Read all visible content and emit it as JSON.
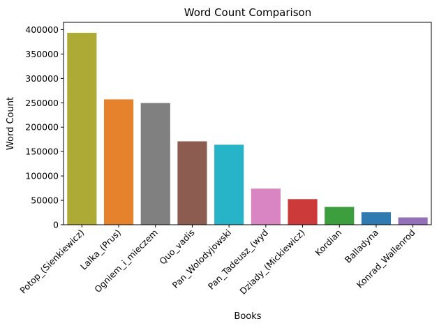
{
  "chart_data": {
    "type": "bar",
    "title": "Word Count Comparison",
    "xlabel": "Books",
    "ylabel": "Word Count",
    "ylim": [
      0,
      415000
    ],
    "yticks": [
      0,
      50000,
      100000,
      150000,
      200000,
      250000,
      300000,
      350000,
      400000
    ],
    "ytick_labels": [
      "0",
      "50000",
      "100000",
      "150000",
      "200000",
      "250000",
      "300000",
      "350000",
      "400000"
    ],
    "grid": false,
    "legend": "none",
    "categories": [
      "Potop_(Sienkiewicz)",
      "Lalka_(Prus)",
      "Ogniem_i_mieczem",
      "Quo_vadis",
      "Pan_Wolodyjowski",
      "Pan_Tadeusz_(wyd",
      "Dziady_(Mickiewicz)",
      "Kordian",
      "Balladyna",
      "Konrad_Wallenrod"
    ],
    "values": [
      393500,
      257000,
      249500,
      171000,
      164000,
      74000,
      52500,
      36500,
      25500,
      15000
    ],
    "colors": [
      "#adab36",
      "#e6822b",
      "#808080",
      "#8c5c50",
      "#28b4c8",
      "#d984c3",
      "#cd3a3a",
      "#3c9e3c",
      "#2f7ab0",
      "#9470b8"
    ]
  }
}
